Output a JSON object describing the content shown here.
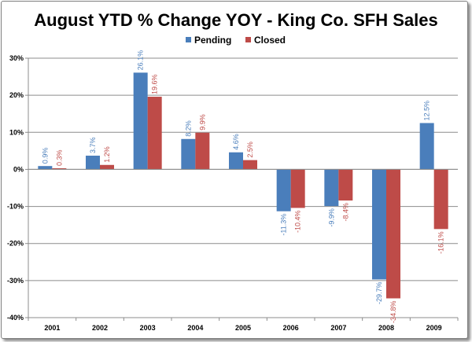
{
  "chart_data": {
    "type": "bar",
    "title": "August YTD % Change YOY - King Co. SFH Sales",
    "categories": [
      "2001",
      "2002",
      "2003",
      "2004",
      "2005",
      "2006",
      "2007",
      "2008",
      "2009"
    ],
    "series": [
      {
        "name": "Pending",
        "color": "#4a7ebb",
        "values": [
          0.9,
          3.7,
          26.1,
          8.2,
          4.6,
          -11.3,
          -9.9,
          -29.7,
          12.5
        ],
        "labels": [
          "0.9%",
          "3.7%",
          "26.1%",
          "8.2%",
          "4.6%",
          "-11.3%",
          "-9.9%",
          "-29.7%",
          "12.5%"
        ]
      },
      {
        "name": "Closed",
        "color": "#be4b48",
        "values": [
          0.3,
          1.2,
          19.6,
          9.9,
          2.5,
          -10.4,
          -8.4,
          -34.8,
          -16.1
        ],
        "labels": [
          "0.3%",
          "1.2%",
          "19.6%",
          "9.9%",
          "2.5%",
          "-10.4%",
          "-8.4%",
          "-34.8%",
          "-16.1%"
        ]
      }
    ],
    "ylim": [
      -40,
      30
    ],
    "yticks": [
      30,
      20,
      10,
      0,
      -10,
      -20,
      -30,
      -40
    ],
    "ytick_labels": [
      "30%",
      "20%",
      "10%",
      "0%",
      "-10%",
      "-20%",
      "-30%",
      "-40%"
    ],
    "xlabel": "",
    "ylabel": "",
    "grid": true,
    "legend_position": "top"
  }
}
